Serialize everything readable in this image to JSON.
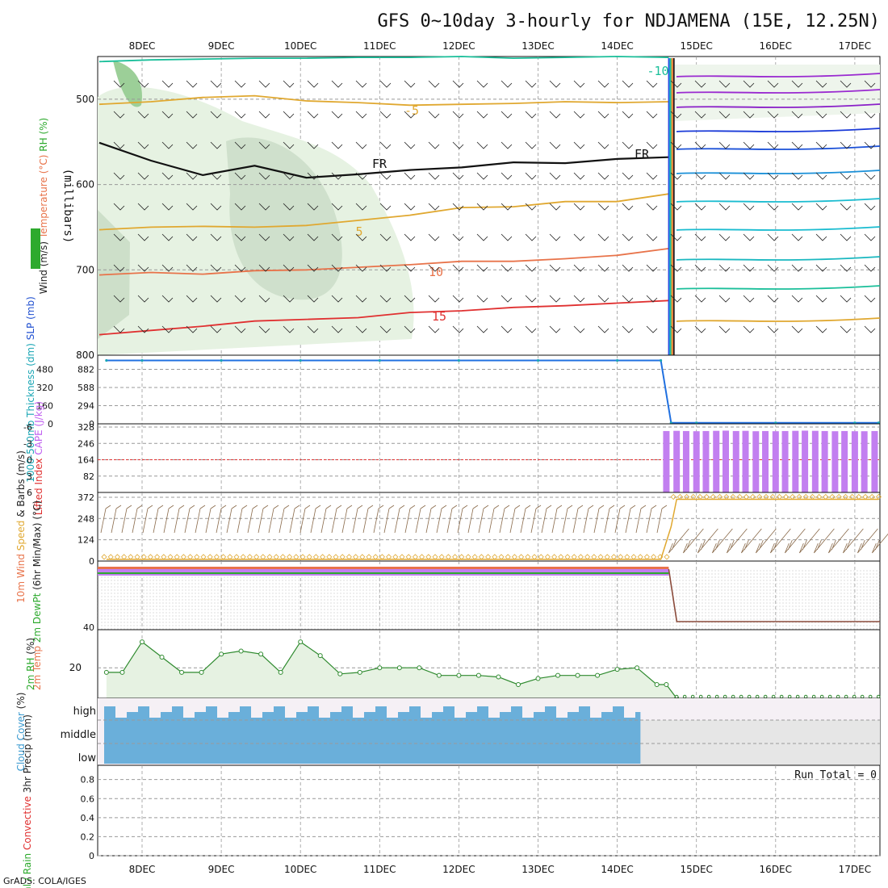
{
  "title": "GFS 0~10day 3-hourly for NDJAMENA (15E, 12.25N)",
  "footer": "GrADS: COLA/IGES",
  "chart_data": {
    "type": "meteogram",
    "time_labels": [
      "8DEC",
      "9DEC",
      "10DEC",
      "11DEC",
      "12DEC",
      "13DEC",
      "14DEC",
      "15DEC",
      "16DEC",
      "17DEC"
    ],
    "missing_after_day": 14.65,
    "panels": [
      {
        "id": "upper_air",
        "type": "contour",
        "ylabel_parts": [
          {
            "text": "Wind (m/s)",
            "color": "#222222"
          },
          {
            "text": "Temperature (°C)",
            "color": "#e8734a"
          },
          {
            "text": "RH (%)",
            "color": "#2eaa2e"
          }
        ],
        "yunit": "(millibars)",
        "yticks": [
          "500",
          "600",
          "700",
          "800"
        ],
        "ylim": [
          450,
          800
        ],
        "contour_labels": [
          "-10",
          "-5",
          "FR",
          "FR",
          "5",
          "10",
          "15"
        ],
        "isotherms": [
          {
            "label": "-10",
            "color": "#1bbf9a",
            "values_mb": [
              456,
              454,
              453,
              452,
              452,
              451,
              451,
              450,
              452,
              451,
              450,
              451
            ]
          },
          {
            "label": "-5",
            "color": "#e0a830",
            "values_mb": [
              506,
              503,
              498,
              496,
              502,
              504,
              507,
              506,
              505,
              503,
              504,
              503
            ]
          },
          {
            "label": "FR",
            "color": "#111111",
            "values_mb": [
              551,
              572,
              589,
              578,
              592,
              588,
              583,
              580,
              574,
              575,
              570,
              568
            ]
          },
          {
            "label": "5",
            "color": "#e0a830",
            "values_mb": [
              653,
              650,
              649,
              650,
              648,
              642,
              636,
              627,
              626,
              620,
              620,
              611
            ]
          },
          {
            "label": "10",
            "color": "#e8734a",
            "values_mb": [
              706,
              703,
              705,
              701,
              700,
              697,
              694,
              690,
              690,
              687,
              683,
              675
            ]
          },
          {
            "label": "15",
            "color": "#e03030",
            "values_mb": [
              776,
              771,
              766,
              760,
              758,
              756,
              750,
              748,
              744,
              742,
              739,
              736
            ]
          }
        ]
      },
      {
        "id": "thickness_slp",
        "type": "line",
        "ylabel_parts": [
          {
            "text": "1000-500mb Thickness (dm)",
            "color": "#1aa6b5"
          },
          {
            "text": "SLP (mb)",
            "color": "#2050d0"
          }
        ],
        "yticks_left": [
          "0",
          "160",
          "320",
          "480"
        ],
        "yticks_right": [
          "0",
          "294",
          "588",
          "882"
        ],
        "ylim": [
          0,
          960
        ],
        "series": [
          {
            "name": "SLP",
            "color": "#2070e0",
            "x": [
              7.55,
              8,
              9,
              10,
              11,
              12,
              13,
              14,
              14.55,
              14.68,
              15,
              16,
              17,
              17.3
            ],
            "y": [
              930,
              930,
              930,
              930,
              930,
              930,
              930,
              930,
              930,
              15,
              15,
              15,
              15,
              15
            ]
          }
        ]
      },
      {
        "id": "li_cape",
        "type": "bar",
        "ylabel_parts": [
          {
            "text": "Lifted Index",
            "color": "#e03030"
          },
          {
            "text": "CAPE (J/kg)",
            "color": "#c060f0"
          }
        ],
        "yticks_left": [
          "-6",
          "-3",
          "0",
          "3",
          "6"
        ],
        "yticks_right": [
          "82",
          "164",
          "246",
          "328"
        ],
        "ylim": [
          0,
          328
        ],
        "bar_color": "#c27ff0",
        "bars": [
          {
            "x": 14.62,
            "value": 308
          },
          {
            "x": 14.75,
            "value": 309
          },
          {
            "x": 14.87,
            "value": 308
          },
          {
            "x": 15.0,
            "value": 307
          },
          {
            "x": 15.12,
            "value": 308
          },
          {
            "x": 15.25,
            "value": 309
          },
          {
            "x": 15.37,
            "value": 310
          },
          {
            "x": 15.5,
            "value": 308
          },
          {
            "x": 15.62,
            "value": 309
          },
          {
            "x": 15.75,
            "value": 307
          },
          {
            "x": 15.87,
            "value": 308
          },
          {
            "x": 16.0,
            "value": 307
          },
          {
            "x": 16.12,
            "value": 308
          },
          {
            "x": 16.25,
            "value": 309
          },
          {
            "x": 16.37,
            "value": 310
          },
          {
            "x": 16.5,
            "value": 309
          },
          {
            "x": 16.62,
            "value": 308
          },
          {
            "x": 16.75,
            "value": 307
          },
          {
            "x": 16.87,
            "value": 308
          },
          {
            "x": 17.0,
            "value": 307
          },
          {
            "x": 17.12,
            "value": 307
          },
          {
            "x": 17.25,
            "value": 308
          }
        ]
      },
      {
        "id": "wind10m",
        "type": "line",
        "ylabel_parts": [
          {
            "text": "10m Wind",
            "color": "#e8734a"
          },
          {
            "text": "Speed",
            "color": "#e0a830"
          },
          {
            "text": "& Barbs (m/s)",
            "color": "#222222"
          }
        ],
        "yticks": [
          "0",
          "124",
          "248",
          "372"
        ],
        "ylim": [
          0,
          400
        ],
        "series": [
          {
            "name": "Speed",
            "color": "#e0a830",
            "x": [
              7.55,
              8,
              9,
              10,
              11,
              12,
              13,
              14,
              14.55,
              14.68,
              14.75,
              15,
              16,
              17,
              17.3
            ],
            "y": [
              10,
              10,
              10,
              10,
              10,
              10,
              10,
              10,
              10,
              200,
              360,
              360,
              360,
              360,
              360
            ]
          }
        ]
      },
      {
        "id": "temp2m",
        "type": "line",
        "ylabel_parts": [
          {
            "text": "2m Temp",
            "color": "#e8734a"
          },
          {
            "text": "2m DewPt",
            "color": "#2eaa2e"
          },
          {
            "text": "(6hr Min/Max)",
            "color": "#222222"
          },
          {
            "text": "(°C)",
            "color": "#222222"
          }
        ],
        "yticks": [
          "40"
        ],
        "series": [
          {
            "name": "2m Temp",
            "color": "#e8734a",
            "x": [
              7.55,
              14.55,
              14.7,
              17.3
            ],
            "y": [
              38,
              38,
              -37,
              -37
            ]
          }
        ]
      },
      {
        "id": "rh2m",
        "type": "area",
        "ylabel_parts": [
          {
            "text": "2m RH",
            "color": "#2eaa2e"
          },
          {
            "text": "(%)",
            "color": "#222222"
          }
        ],
        "yticks": [
          "20"
        ],
        "ylim": [
          0,
          45
        ],
        "x": [
          7.55,
          7.75,
          8.0,
          8.25,
          8.5,
          8.75,
          9.0,
          9.25,
          9.5,
          9.75,
          10.0,
          10.25,
          10.5,
          10.75,
          11.0,
          11.25,
          11.5,
          11.75,
          12.0,
          12.25,
          12.5,
          12.75,
          13.0,
          13.25,
          13.5,
          13.75,
          14.0,
          14.25,
          14.5,
          14.62,
          14.75
        ],
        "values": [
          17,
          17,
          37,
          27,
          17,
          17,
          29,
          31,
          29,
          17,
          37,
          28,
          16,
          17,
          20,
          20,
          20,
          15,
          15,
          15,
          14,
          9,
          13,
          15,
          15,
          15,
          19,
          20,
          9,
          9,
          0
        ]
      },
      {
        "id": "cloud",
        "type": "area",
        "ylabel_parts": [
          {
            "text": "Cloud Cover",
            "color": "#3a9ad0"
          },
          {
            "text": "(%)",
            "color": "#222222"
          }
        ],
        "levels": [
          "high",
          "middle",
          "low"
        ],
        "color": "#6aafda"
      },
      {
        "id": "precip",
        "type": "bar",
        "ylabel_parts": [
          {
            "text": "Total / Rain",
            "color": "#2eaa2e"
          },
          {
            "text": "Convective",
            "color": "#e03030"
          },
          {
            "text": "3hr Precip (mm)",
            "color": "#222222"
          }
        ],
        "yticks": [
          "0",
          "0.2",
          "0.4",
          "0.6",
          "0.8"
        ],
        "ylim": [
          0,
          0.95
        ],
        "annotation": "Run Total = 0",
        "values": []
      }
    ]
  }
}
